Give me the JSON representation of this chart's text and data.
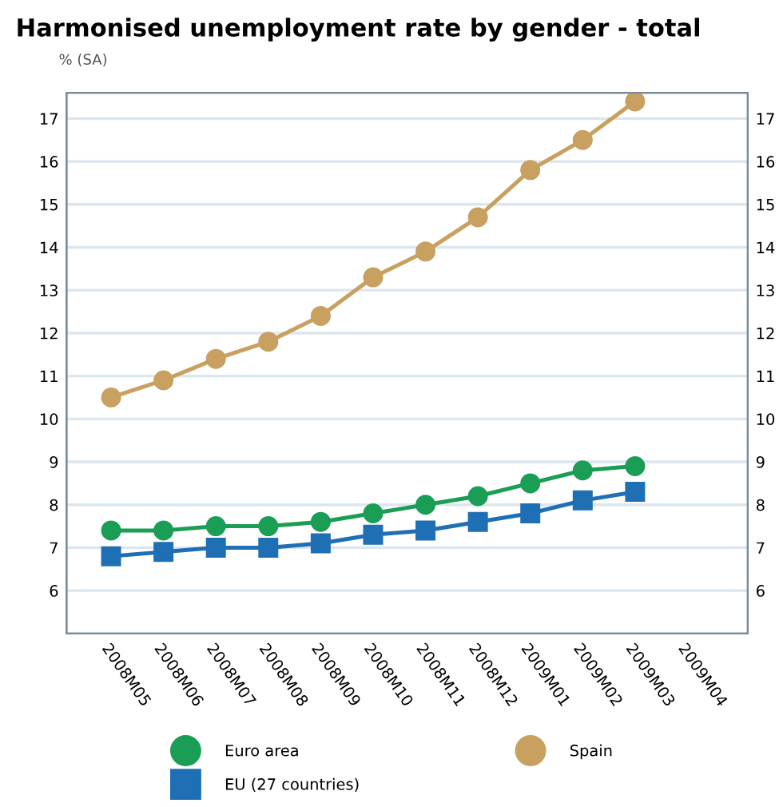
{
  "chart_data": {
    "type": "line",
    "title": "Harmonised unemployment rate by gender - total",
    "subtitle": "% (SA)",
    "categories": [
      "2008M05",
      "2008M06",
      "2008M07",
      "2008M08",
      "2008M09",
      "2008M10",
      "2008M11",
      "2008M12",
      "2009M01",
      "2009M02",
      "2009M03",
      "2009M04"
    ],
    "series": [
      {
        "name": "Euro area",
        "color": "#1a9e55",
        "marker": "circle",
        "values": [
          7.4,
          7.4,
          7.5,
          7.5,
          7.6,
          7.8,
          8.0,
          8.2,
          8.5,
          8.8,
          8.9,
          null
        ]
      },
      {
        "name": "EU (27 countries)",
        "color": "#1f6fb5",
        "marker": "square",
        "values": [
          6.8,
          6.9,
          7.0,
          7.0,
          7.1,
          7.3,
          7.4,
          7.6,
          7.8,
          8.1,
          8.3,
          null
        ]
      },
      {
        "name": "Spain",
        "color": "#c8a060",
        "marker": "circle",
        "values": [
          10.5,
          10.9,
          11.4,
          11.8,
          12.4,
          13.3,
          13.9,
          14.7,
          15.8,
          16.5,
          17.4,
          null
        ]
      }
    ],
    "ylim": [
      5,
      17.6
    ],
    "yticks": [
      6,
      7,
      8,
      9,
      10,
      11,
      12,
      13,
      14,
      15,
      16,
      17
    ],
    "y2lim": [
      5,
      17.6
    ],
    "y2ticks": [
      6,
      7,
      8,
      9,
      10,
      11,
      12,
      13,
      14,
      15,
      16,
      17
    ],
    "grid": "y",
    "legend": "bottom"
  }
}
